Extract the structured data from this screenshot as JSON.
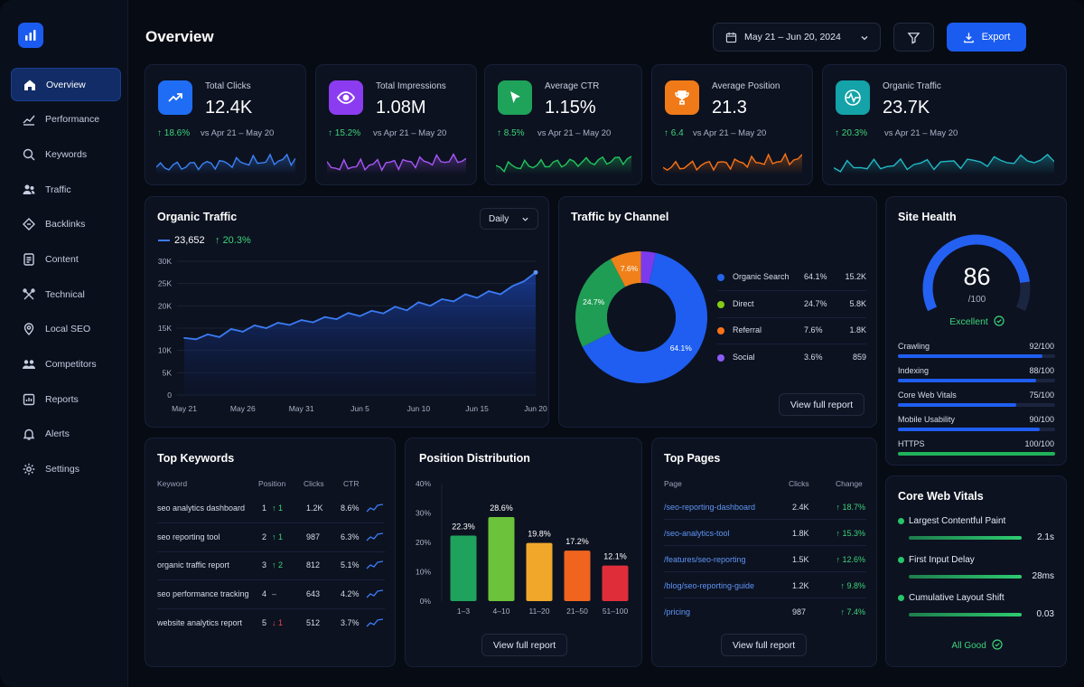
{
  "nav": {
    "items": [
      {
        "label": "Overview",
        "icon": "home-icon"
      },
      {
        "label": "Performance",
        "icon": "trend-icon"
      },
      {
        "label": "Keywords",
        "icon": "search-icon"
      },
      {
        "label": "Traffic",
        "icon": "users-icon"
      },
      {
        "label": "Backlinks",
        "icon": "link-icon"
      },
      {
        "label": "Content",
        "icon": "document-icon"
      },
      {
        "label": "Technical",
        "icon": "tools-icon"
      },
      {
        "label": "Local SEO",
        "icon": "pin-icon"
      },
      {
        "label": "Competitors",
        "icon": "group-icon"
      },
      {
        "label": "Reports",
        "icon": "report-icon"
      },
      {
        "label": "Alerts",
        "icon": "bell-icon"
      },
      {
        "label": "Settings",
        "icon": "gear-icon"
      }
    ],
    "active": "Overview"
  },
  "header": {
    "title": "Overview",
    "date_range": "May 21 – Jun 20, 2024",
    "export_label": "Export"
  },
  "kpis": [
    {
      "label": "Total Clicks",
      "value": "12.4K",
      "delta": "18.6%",
      "compare": "vs Apr 21 – May 20",
      "color": "#1f6df5",
      "spark_color": "#3b82f6",
      "icon": "trend-up-icon"
    },
    {
      "label": "Total Impressions",
      "value": "1.08M",
      "delta": "15.2%",
      "compare": "vs Apr 21 – May 20",
      "color": "#8b3cf0",
      "spark_color": "#a855f7",
      "icon": "eye-icon"
    },
    {
      "label": "Average CTR",
      "value": "1.15%",
      "delta": "8.5%",
      "compare": "vs Apr 21 – May 20",
      "color": "#1fa25a",
      "spark_color": "#22c55e",
      "icon": "cursor-icon"
    },
    {
      "label": "Average Position",
      "value": "21.3",
      "delta": "6.4",
      "compare": "vs Apr 21 – May 20",
      "color": "#f07a18",
      "spark_color": "#f97316",
      "icon": "trophy-icon"
    },
    {
      "label": "Organic Traffic",
      "value": "23.7K",
      "delta": "20.3%",
      "compare": "vs Apr 21 – May 20",
      "color": "#13a3a8",
      "spark_color": "#22b8c4",
      "icon": "pulse-icon"
    }
  ],
  "organic": {
    "title": "Organic Traffic",
    "period": "Daily",
    "total": "23,652",
    "delta": "20.3%"
  },
  "chart_data": [
    {
      "type": "area",
      "x": [
        "May 21",
        "May 22",
        "May 23",
        "May 24",
        "May 25",
        "May 26",
        "May 27",
        "May 28",
        "May 29",
        "May 30",
        "May 31",
        "Jun 1",
        "Jun 2",
        "Jun 3",
        "Jun 4",
        "Jun 5",
        "Jun 6",
        "Jun 7",
        "Jun 8",
        "Jun 9",
        "Jun 10",
        "Jun 11",
        "Jun 12",
        "Jun 13",
        "Jun 14",
        "Jun 15",
        "Jun 16",
        "Jun 17",
        "Jun 18",
        "Jun 19",
        "Jun 20"
      ],
      "x_tick_labels": [
        "May 21",
        "May 26",
        "May 31",
        "Jun 5",
        "Jun 10",
        "Jun 15",
        "Jun 20"
      ],
      "values": [
        12800,
        12500,
        13600,
        13000,
        14800,
        14200,
        15600,
        15000,
        16200,
        15700,
        16800,
        16300,
        17500,
        17000,
        18400,
        17700,
        18900,
        18300,
        19800,
        19000,
        20800,
        20000,
        21500,
        21000,
        22600,
        21800,
        23300,
        22600,
        24400,
        25500,
        27500
      ],
      "y_tick_labels": [
        "0",
        "5K",
        "10K",
        "15K",
        "20K",
        "25K",
        "30K"
      ],
      "ylim": [
        0,
        30000
      ]
    },
    {
      "type": "pie",
      "title": "Traffic by Channel",
      "categories": [
        "Organic Search",
        "Direct",
        "Referral",
        "Social"
      ],
      "values": [
        64.1,
        24.7,
        7.6,
        3.6
      ],
      "counts": [
        "15.2K",
        "5.8K",
        "1.8K",
        "859"
      ],
      "colors": [
        "#1f5ef0",
        "#1f9d55",
        "#f0801a",
        "#7c3aed"
      ],
      "slice_labels": [
        "64.1%",
        "24.7%",
        "7.6%",
        ""
      ]
    },
    {
      "type": "bar",
      "title": "Position Distribution",
      "categories": [
        "1–3",
        "4–10",
        "11–20",
        "21–50",
        "51–100"
      ],
      "values": [
        22.3,
        28.6,
        19.8,
        17.2,
        12.1
      ],
      "data_labels": [
        "22.3%",
        "28.6%",
        "19.8%",
        "17.2%",
        "12.1%"
      ],
      "colors": [
        "#1fa35c",
        "#6cc23a",
        "#f0a72a",
        "#f0641f",
        "#df2e3a"
      ],
      "y_tick_labels": [
        "0%",
        "10%",
        "20%",
        "30%",
        "40%"
      ],
      "ylim": [
        0,
        40
      ]
    }
  ],
  "channel": {
    "title": "Traffic by Channel",
    "rows": [
      {
        "name": "Organic Search",
        "pct": "64.1%",
        "count": "15.2K",
        "color": "#2563eb"
      },
      {
        "name": "Direct",
        "pct": "24.7%",
        "count": "5.8K",
        "color": "#84cc16"
      },
      {
        "name": "Referral",
        "pct": "7.6%",
        "count": "1.8K",
        "color": "#f97316"
      },
      {
        "name": "Social",
        "pct": "3.6%",
        "count": "859",
        "color": "#8b5cf6"
      }
    ],
    "report_label": "View full report"
  },
  "health": {
    "title": "Site Health",
    "score": "86",
    "score_value": 86,
    "score_max": "/100",
    "status": "Excellent",
    "metrics": [
      {
        "label": "Crawling",
        "value": "92/100",
        "fraction": 0.92,
        "color": "#1f5ef0"
      },
      {
        "label": "Indexing",
        "value": "88/100",
        "fraction": 0.88,
        "color": "#1f5ef0"
      },
      {
        "label": "Core Web Vitals",
        "value": "75/100",
        "fraction": 0.75,
        "color": "#1f5ef0"
      },
      {
        "label": "Mobile Usability",
        "value": "90/100",
        "fraction": 0.9,
        "color": "#1f5ef0"
      },
      {
        "label": "HTTPS",
        "value": "100/100",
        "fraction": 1.0,
        "color": "#20b15a"
      }
    ]
  },
  "keywords": {
    "title": "Top Keywords",
    "headers": [
      "Keyword",
      "Position",
      "Clicks",
      "CTR"
    ],
    "rows": [
      {
        "keyword": "seo analytics dashboard",
        "position": "1",
        "change": "↑ 1",
        "dir": "up",
        "clicks": "1.2K",
        "ctr": "8.6%"
      },
      {
        "keyword": "seo reporting tool",
        "position": "2",
        "change": "↑ 1",
        "dir": "up",
        "clicks": "987",
        "ctr": "6.3%"
      },
      {
        "keyword": "organic traffic report",
        "position": "3",
        "change": "↑ 2",
        "dir": "up",
        "clicks": "812",
        "ctr": "5.1%"
      },
      {
        "keyword": "seo performance tracking",
        "position": "4",
        "change": "–",
        "dir": "flat",
        "clicks": "643",
        "ctr": "4.2%"
      },
      {
        "keyword": "website analytics report",
        "position": "5",
        "change": "↓ 1",
        "dir": "down",
        "clicks": "512",
        "ctr": "3.7%"
      }
    ]
  },
  "positions": {
    "title": "Position Distribution",
    "report_label": "View full report"
  },
  "pages": {
    "title": "Top Pages",
    "headers": [
      "Page",
      "Clicks",
      "Change"
    ],
    "rows": [
      {
        "page": "/seo-reporting-dashboard",
        "clicks": "2.4K",
        "change": "↑ 18.7%"
      },
      {
        "page": "/seo-analytics-tool",
        "clicks": "1.8K",
        "change": "↑ 15.3%"
      },
      {
        "page": "/features/seo-reporting",
        "clicks": "1.5K",
        "change": "↑ 12.6%"
      },
      {
        "page": "/blog/seo-reporting-guide",
        "clicks": "1.2K",
        "change": "↑ 9.8%"
      },
      {
        "page": "/pricing",
        "clicks": "987",
        "change": "↑ 7.4%"
      }
    ],
    "report_label": "View full report"
  },
  "vitals": {
    "title": "Core Web Vitals",
    "items": [
      {
        "label": "Largest Contentful Paint",
        "value": "2.1s",
        "fraction": 1.0
      },
      {
        "label": "First Input Delay",
        "value": "28ms",
        "fraction": 1.0
      },
      {
        "label": "Cumulative Layout Shift",
        "value": "0.03",
        "fraction": 1.0
      }
    ],
    "status": "All Good"
  }
}
